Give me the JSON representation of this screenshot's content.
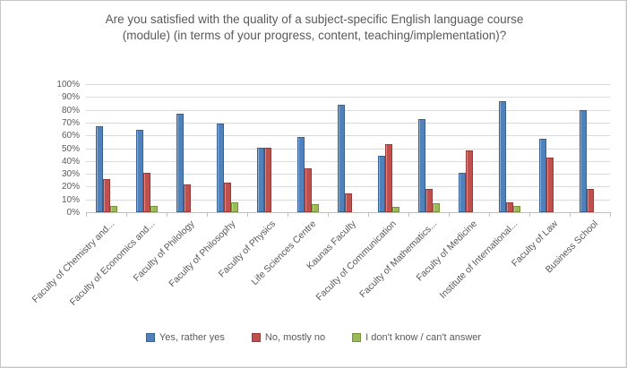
{
  "chart_data": {
    "type": "bar",
    "title": "Are you satisfied with the quality of a subject-specific English language course (module) (in terms of your progress, content, teaching/implementation)?",
    "categories": [
      "Faculty of Chemistry and...",
      "Faculty of Economics and...",
      "Faculty of Philology",
      "Faculty of Philosophy",
      "Faculty of Physics",
      "Life Sciences Centre",
      "Kaunas Faculty",
      "Faculty of Communication",
      "Faculty of Mathematics...",
      "Faculty of Medicine",
      "Institute of International...",
      "Faculty of Law",
      "Business School"
    ],
    "series": [
      {
        "name": "Yes, rather yes",
        "color": "#4f81bd",
        "border_color": "#39618f",
        "values": [
          67,
          64,
          77,
          69,
          50,
          59,
          84,
          44,
          73,
          31,
          87,
          57,
          80
        ]
      },
      {
        "name": "No, mostly no",
        "color": "#c0504d",
        "border_color": "#953b38",
        "values": [
          26,
          31,
          22,
          23,
          50,
          34,
          15,
          53,
          18,
          48,
          8,
          43,
          18
        ]
      },
      {
        "name": "I don't know / can't answer",
        "color": "#9bbb59",
        "border_color": "#76933c",
        "values": [
          5,
          5,
          0,
          8,
          0,
          6,
          0,
          4,
          7,
          0,
          5,
          0,
          0
        ]
      }
    ],
    "xlabel": "",
    "ylabel": "",
    "ylim": [
      0,
      100
    ],
    "y_tick_step": 10,
    "y_tick_labels": [
      "0%",
      "10%",
      "20%",
      "30%",
      "40%",
      "50%",
      "60%",
      "70%",
      "80%",
      "90%",
      "100%"
    ],
    "grid": true,
    "legend_position": "bottom",
    "colors": {
      "gridline": "#d9d9d9",
      "axis_line": "#bfbfbf",
      "text": "#595959"
    }
  }
}
